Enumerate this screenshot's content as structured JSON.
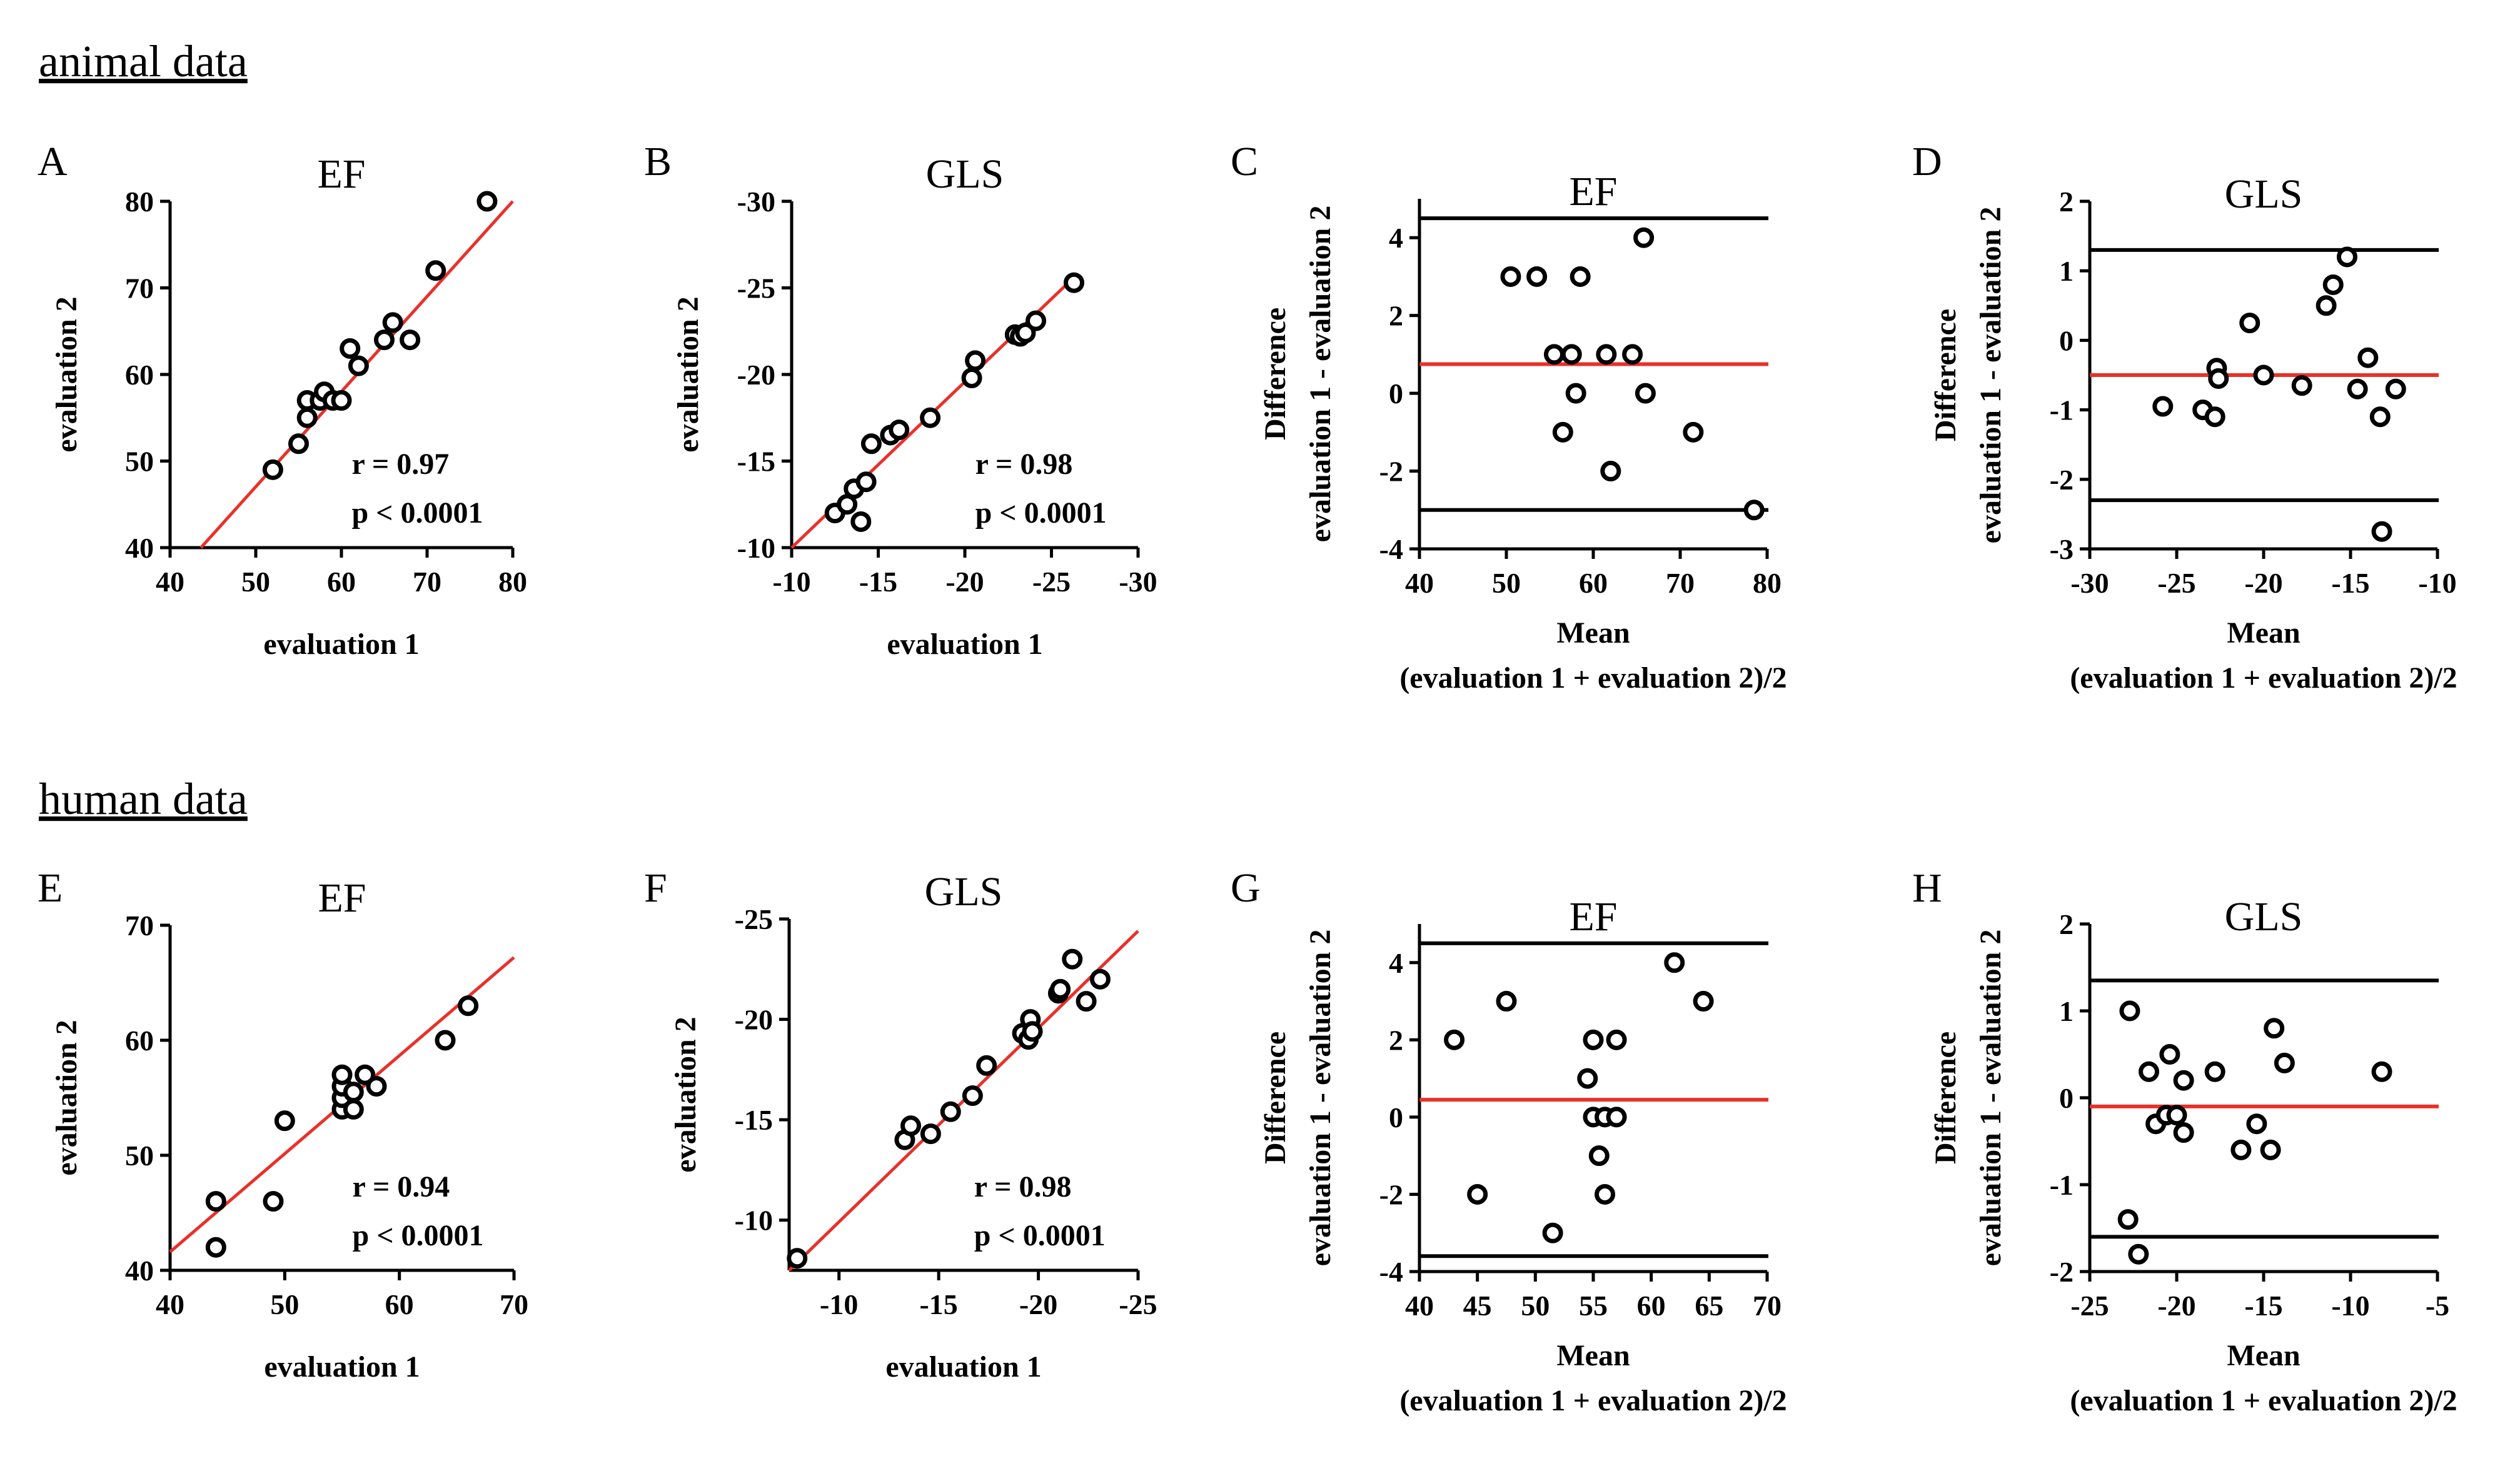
{
  "sections": {
    "animal": "animal data",
    "human": "human data"
  },
  "colors": {
    "ink": "#000000",
    "fit": "#e8312a",
    "background": "#ffffff"
  },
  "chart_data": [
    {
      "panel": "A",
      "type": "scatter",
      "title": "EF",
      "xlabel": "evaluation 1",
      "ylabel": [
        "evaluation 2"
      ],
      "xlim": [
        40,
        80
      ],
      "ylim": [
        40,
        80
      ],
      "xticks": [
        40,
        50,
        60,
        70,
        80
      ],
      "yticks": [
        40,
        50,
        60,
        70,
        80
      ],
      "xtick_labels": [
        "40",
        "50",
        "60",
        "70",
        "80"
      ],
      "ytick_labels": [
        "40",
        "50",
        "60",
        "70",
        "80"
      ],
      "points": [
        [
          52,
          49
        ],
        [
          55,
          52
        ],
        [
          56,
          55
        ],
        [
          56,
          57
        ],
        [
          57.5,
          57
        ],
        [
          58,
          58
        ],
        [
          59,
          57
        ],
        [
          60,
          57
        ],
        [
          61,
          63
        ],
        [
          62,
          61
        ],
        [
          65,
          64
        ],
        [
          66,
          66
        ],
        [
          68,
          64
        ],
        [
          71,
          72
        ],
        [
          77,
          80
        ]
      ],
      "fit_line": [
        [
          43.6,
          40
        ],
        [
          80,
          80
        ]
      ],
      "stats": [
        "r = 0.97",
        "p < 0.0001"
      ]
    },
    {
      "panel": "B",
      "type": "scatter",
      "title": "GLS",
      "xlabel": "evaluation 1",
      "ylabel": [
        "evaluation 2"
      ],
      "xlim": [
        -10,
        -30
      ],
      "ylim": [
        -10,
        -30
      ],
      "xticks": [
        -10,
        -15,
        -20,
        -25,
        -30
      ],
      "yticks": [
        -10,
        -15,
        -20,
        -25,
        -30
      ],
      "xtick_labels": [
        "-10",
        "-15",
        "-20",
        "-25",
        "-30"
      ],
      "ytick_labels": [
        "-10",
        "-15",
        "-20",
        "-25",
        "-30"
      ],
      "points": [
        [
          -12.5,
          -12
        ],
        [
          -13.2,
          -12.5
        ],
        [
          -13.6,
          -13.4
        ],
        [
          -14,
          -11.5
        ],
        [
          -14.3,
          -13.8
        ],
        [
          -14.6,
          -16
        ],
        [
          -15.7,
          -16.5
        ],
        [
          -16.2,
          -16.8
        ],
        [
          -18,
          -17.5
        ],
        [
          -20.4,
          -19.8
        ],
        [
          -20.6,
          -20.8
        ],
        [
          -22.9,
          -22.3
        ],
        [
          -23.2,
          -22.2
        ],
        [
          -23.5,
          -22.4
        ],
        [
          -24.1,
          -23.1
        ],
        [
          -26.3,
          -25.3
        ]
      ],
      "fit_line": [
        [
          -10,
          -10
        ],
        [
          -26.5,
          -25.8
        ]
      ],
      "stats": [
        "r = 0.98",
        "p < 0.0001"
      ]
    },
    {
      "panel": "C",
      "type": "scatter",
      "title": "EF",
      "xlabel": [
        "Mean",
        "(evaluation 1 + evaluation 2)/2"
      ],
      "ylabel": [
        "Difference",
        "evaluation 1 - evaluation 2"
      ],
      "xlim": [
        40,
        80
      ],
      "ylim": [
        -4,
        5
      ],
      "xticks": [
        40,
        50,
        60,
        70,
        80
      ],
      "yticks": [
        -4,
        -2,
        0,
        2,
        4
      ],
      "xtick_labels": [
        "40",
        "50",
        "60",
        "70",
        "80"
      ],
      "ytick_labels": [
        "-4",
        "-2",
        "0",
        "2",
        "4"
      ],
      "points": [
        [
          50.5,
          3
        ],
        [
          53.5,
          3
        ],
        [
          55.5,
          1
        ],
        [
          56.5,
          -1
        ],
        [
          57.5,
          1
        ],
        [
          58,
          0
        ],
        [
          58.5,
          3
        ],
        [
          61.5,
          1
        ],
        [
          62,
          -2
        ],
        [
          64.5,
          1
        ],
        [
          65.8,
          4
        ],
        [
          66,
          0
        ],
        [
          71.5,
          -1
        ],
        [
          78.5,
          -3
        ]
      ],
      "hlines": [
        {
          "y": 4.5,
          "color": "ink"
        },
        {
          "y": 0.75,
          "color": "fit"
        },
        {
          "y": -3,
          "color": "ink"
        }
      ]
    },
    {
      "panel": "D",
      "type": "scatter",
      "title": "GLS",
      "xlabel": [
        "Mean",
        "(evaluation 1 + evaluation 2)/2"
      ],
      "ylabel": [
        "Difference",
        "evaluation 1 - evaluation 2"
      ],
      "xlim": [
        -30,
        -10
      ],
      "ylim": [
        -3,
        2
      ],
      "xticks": [
        -30,
        -25,
        -20,
        -15,
        -10
      ],
      "yticks": [
        -3,
        -2,
        -1,
        0,
        1,
        2
      ],
      "xtick_labels": [
        "-30",
        "-25",
        "-20",
        "-15",
        "-10"
      ],
      "ytick_labels": [
        "-3",
        "-2",
        "-1",
        "0",
        "1",
        "2"
      ],
      "points": [
        [
          -25.8,
          -0.95
        ],
        [
          -23.5,
          -1
        ],
        [
          -22.8,
          -1.1
        ],
        [
          -22.7,
          -0.4
        ],
        [
          -22.6,
          -0.55
        ],
        [
          -20.8,
          0.25
        ],
        [
          -20,
          -0.5
        ],
        [
          -17.8,
          -0.65
        ],
        [
          -16.4,
          0.5
        ],
        [
          -16,
          0.8
        ],
        [
          -15.2,
          1.2
        ],
        [
          -14.6,
          -0.7
        ],
        [
          -14,
          -0.25
        ],
        [
          -13.3,
          -1.1
        ],
        [
          -13.2,
          -2.75
        ],
        [
          -12.4,
          -0.7
        ]
      ],
      "hlines": [
        {
          "y": 1.3,
          "color": "ink"
        },
        {
          "y": -0.5,
          "color": "fit"
        },
        {
          "y": -2.3,
          "color": "ink"
        }
      ]
    },
    {
      "panel": "E",
      "type": "scatter",
      "title": "EF",
      "xlabel": "evaluation 1",
      "ylabel": [
        "evaluation 2"
      ],
      "xlim": [
        40,
        70
      ],
      "ylim": [
        40,
        70
      ],
      "xticks": [
        40,
        50,
        60,
        70
      ],
      "yticks": [
        40,
        50,
        60,
        70
      ],
      "xtick_labels": [
        "40",
        "50",
        "60",
        "70"
      ],
      "ytick_labels": [
        "40",
        "50",
        "60",
        "70"
      ],
      "points": [
        [
          44,
          46
        ],
        [
          44,
          42
        ],
        [
          49,
          46
        ],
        [
          50,
          53
        ],
        [
          55,
          54
        ],
        [
          55,
          55
        ],
        [
          55,
          56
        ],
        [
          55,
          57
        ],
        [
          56,
          54
        ],
        [
          56,
          55.5
        ],
        [
          57,
          57
        ],
        [
          58,
          56
        ],
        [
          64,
          60
        ],
        [
          66,
          63
        ]
      ],
      "fit_line": [
        [
          40,
          41.6
        ],
        [
          70,
          67.2
        ]
      ],
      "stats": [
        "r = 0.94",
        "p < 0.0001"
      ]
    },
    {
      "panel": "F",
      "type": "scatter",
      "title": "GLS",
      "xlabel": "evaluation 1",
      "ylabel": [
        "evaluation 2"
      ],
      "xlim": [
        -7.5,
        -25
      ],
      "ylim": [
        -7.5,
        -25
      ],
      "xticks": [
        -10,
        -15,
        -20,
        -25
      ],
      "yticks": [
        -10,
        -15,
        -20,
        -25
      ],
      "xtick_labels": [
        "-10",
        "-15",
        "-20",
        "-25"
      ],
      "ytick_labels": [
        "-10",
        "-15",
        "-20",
        "-25"
      ],
      "points": [
        [
          -7.9,
          -8.1
        ],
        [
          -13.3,
          -14
        ],
        [
          -13.6,
          -14.7
        ],
        [
          -14.6,
          -14.3
        ],
        [
          -15.6,
          -15.4
        ],
        [
          -16.7,
          -16.2
        ],
        [
          -17.4,
          -17.7
        ],
        [
          -19.2,
          -19.3
        ],
        [
          -19.5,
          -19
        ],
        [
          -19.6,
          -20
        ],
        [
          -19.7,
          -19.4
        ],
        [
          -21,
          -21.3
        ],
        [
          -21.1,
          -21.5
        ],
        [
          -21.7,
          -23
        ],
        [
          -22.4,
          -20.9
        ],
        [
          -23.1,
          -22
        ]
      ],
      "fit_line": [
        [
          -7.5,
          -7.5
        ],
        [
          -25,
          -24.4
        ]
      ],
      "stats": [
        "r = 0.98",
        "p < 0.0001"
      ]
    },
    {
      "panel": "G",
      "type": "scatter",
      "title": "EF",
      "xlabel": [
        "Mean",
        "(evaluation 1 + evaluation 2)/2"
      ],
      "ylabel": [
        "Difference",
        "evaluation 1 - evaluation 2"
      ],
      "xlim": [
        40,
        70
      ],
      "ylim": [
        -4,
        5
      ],
      "xticks": [
        40,
        45,
        50,
        55,
        60,
        65,
        70
      ],
      "yticks": [
        -4,
        -2,
        0,
        2,
        4
      ],
      "xtick_labels": [
        "40",
        "45",
        "50",
        "55",
        "60",
        "65",
        "70"
      ],
      "ytick_labels": [
        "-4",
        "-2",
        "0",
        "2",
        "4"
      ],
      "points": [
        [
          43,
          2
        ],
        [
          45,
          -2
        ],
        [
          47.5,
          3
        ],
        [
          51.5,
          -3
        ],
        [
          54.5,
          1
        ],
        [
          55,
          2
        ],
        [
          55,
          0
        ],
        [
          55.5,
          -1
        ],
        [
          56,
          -2
        ],
        [
          56,
          0
        ],
        [
          57,
          0
        ],
        [
          57,
          2
        ],
        [
          62,
          4
        ],
        [
          64.5,
          3
        ]
      ],
      "hlines": [
        {
          "y": 4.5,
          "color": "ink"
        },
        {
          "y": 0.45,
          "color": "fit"
        },
        {
          "y": -3.6,
          "color": "ink"
        }
      ]
    },
    {
      "panel": "H",
      "type": "scatter",
      "title": "GLS",
      "xlabel": [
        "Mean",
        "(evaluation 1 + evaluation 2)/2"
      ],
      "ylabel": [
        "Difference",
        "evaluation 1 - evaluation 2"
      ],
      "xlim": [
        -25,
        -5
      ],
      "ylim": [
        -2,
        2
      ],
      "xticks": [
        -25,
        -20,
        -15,
        -10,
        -5
      ],
      "yticks": [
        -2,
        -1,
        0,
        1,
        2
      ],
      "xtick_labels": [
        "-25",
        "-20",
        "-15",
        "-10",
        "-5"
      ],
      "ytick_labels": [
        "-2",
        "-1",
        "0",
        "1",
        "2"
      ],
      "points": [
        [
          -22.7,
          1
        ],
        [
          -22.8,
          -1.4
        ],
        [
          -22.2,
          -1.8
        ],
        [
          -21.6,
          0.3
        ],
        [
          -21.2,
          -0.3
        ],
        [
          -20.6,
          -0.2
        ],
        [
          -20.4,
          0.5
        ],
        [
          -20,
          -0.2
        ],
        [
          -19.6,
          0.2
        ],
        [
          -19.6,
          -0.4
        ],
        [
          -17.8,
          0.3
        ],
        [
          -16.3,
          -0.6
        ],
        [
          -15.4,
          -0.3
        ],
        [
          -14.6,
          -0.6
        ],
        [
          -14.4,
          0.8
        ],
        [
          -13.8,
          0.4
        ],
        [
          -8.2,
          0.3
        ]
      ],
      "hlines": [
        {
          "y": 1.35,
          "color": "ink"
        },
        {
          "y": -0.1,
          "color": "fit"
        },
        {
          "y": -1.6,
          "color": "ink"
        }
      ]
    }
  ]
}
